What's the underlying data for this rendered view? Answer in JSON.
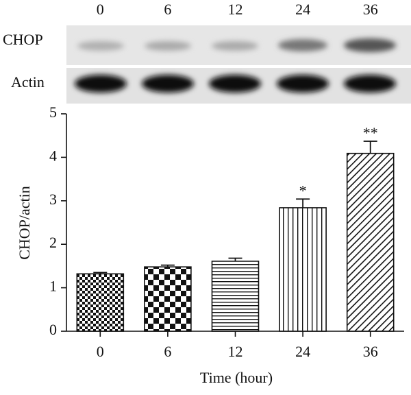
{
  "blot": {
    "lanes": [
      "0",
      "6",
      "12",
      "24",
      "36"
    ],
    "rows": [
      "CHOP",
      "Actin"
    ]
  },
  "chart_data": {
    "type": "bar",
    "x_label": "Time (hour)",
    "y_label": "CHOP/actin",
    "categories": [
      "0",
      "6",
      "12",
      "24",
      "36"
    ],
    "values": [
      1.32,
      1.48,
      1.61,
      2.84,
      4.09
    ],
    "errors": [
      0.03,
      0.04,
      0.07,
      0.2,
      0.28
    ],
    "significance": [
      null,
      null,
      null,
      "*",
      "**"
    ],
    "ylim": [
      0,
      5
    ],
    "yticks": [
      0,
      1,
      2,
      3,
      4,
      5
    ]
  }
}
